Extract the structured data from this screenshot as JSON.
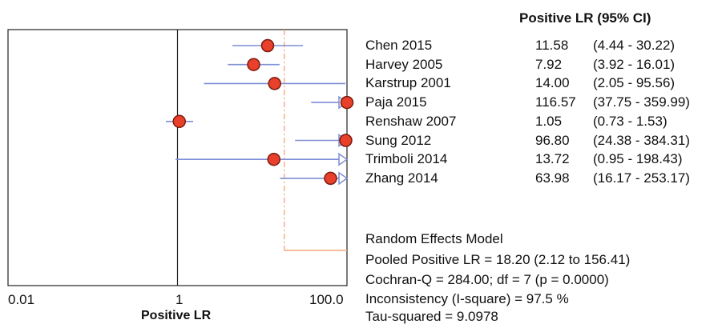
{
  "chart_data": {
    "type": "forest",
    "column_header": "Positive LR (95% CI)",
    "xlabel": "Positive LR",
    "x_scale": "log",
    "xlim": [
      0.01,
      100
    ],
    "x_tick_labels": [
      "0.01",
      "1",
      "100.0"
    ],
    "reference_line": 1,
    "pooled_estimate": 18.2,
    "studies": [
      {
        "label": "Chen 2015",
        "estimate": 11.58,
        "lower": 4.44,
        "upper": 30.22,
        "lr_text": "11.58",
        "ci_text": "(4.44 - 30.22)"
      },
      {
        "label": "Harvey 2005",
        "estimate": 7.92,
        "lower": 3.92,
        "upper": 16.01,
        "lr_text": "7.92",
        "ci_text": "(3.92 - 16.01)"
      },
      {
        "label": "Karstrup 2001",
        "estimate": 14.0,
        "lower": 2.05,
        "upper": 95.56,
        "lr_text": "14.00",
        "ci_text": "(2.05 - 95.56)"
      },
      {
        "label": "Paja 2015",
        "estimate": 116.57,
        "lower": 37.75,
        "upper": 359.99,
        "lr_text": "116.57",
        "ci_text": "(37.75 - 359.99)"
      },
      {
        "label": "Renshaw 2007",
        "estimate": 1.05,
        "lower": 0.73,
        "upper": 1.53,
        "lr_text": "1.05",
        "ci_text": "(0.73 - 1.53)"
      },
      {
        "label": "Sung 2012",
        "estimate": 96.8,
        "lower": 24.38,
        "upper": 384.31,
        "lr_text": "96.80",
        "ci_text": "(24.38 - 384.31)"
      },
      {
        "label": "Trimboli 2014",
        "estimate": 13.72,
        "lower": 0.95,
        "upper": 198.43,
        "lr_text": "13.72",
        "ci_text": "(0.95 - 198.43)"
      },
      {
        "label": "Zhang 2014",
        "estimate": 63.98,
        "lower": 16.17,
        "upper": 253.17,
        "lr_text": "63.98",
        "ci_text": "(16.17 - 253.17)"
      }
    ],
    "summary_lines": [
      "Random Effects Model",
      "Pooled Positive LR = 18.20 (2.12 to 156.41)",
      "Cochran-Q = 284.00; df =  7 (p = 0.0000)",
      "Inconsistency (I-square) = 97.5 %",
      "Tau-squared = 9.0978"
    ],
    "colors": {
      "point_fill": "#e8402a",
      "point_stroke": "#7a1a0e",
      "ci_line": "#7f8ed6",
      "pooled_line": "#f4a57a",
      "frame": "#222222"
    }
  }
}
